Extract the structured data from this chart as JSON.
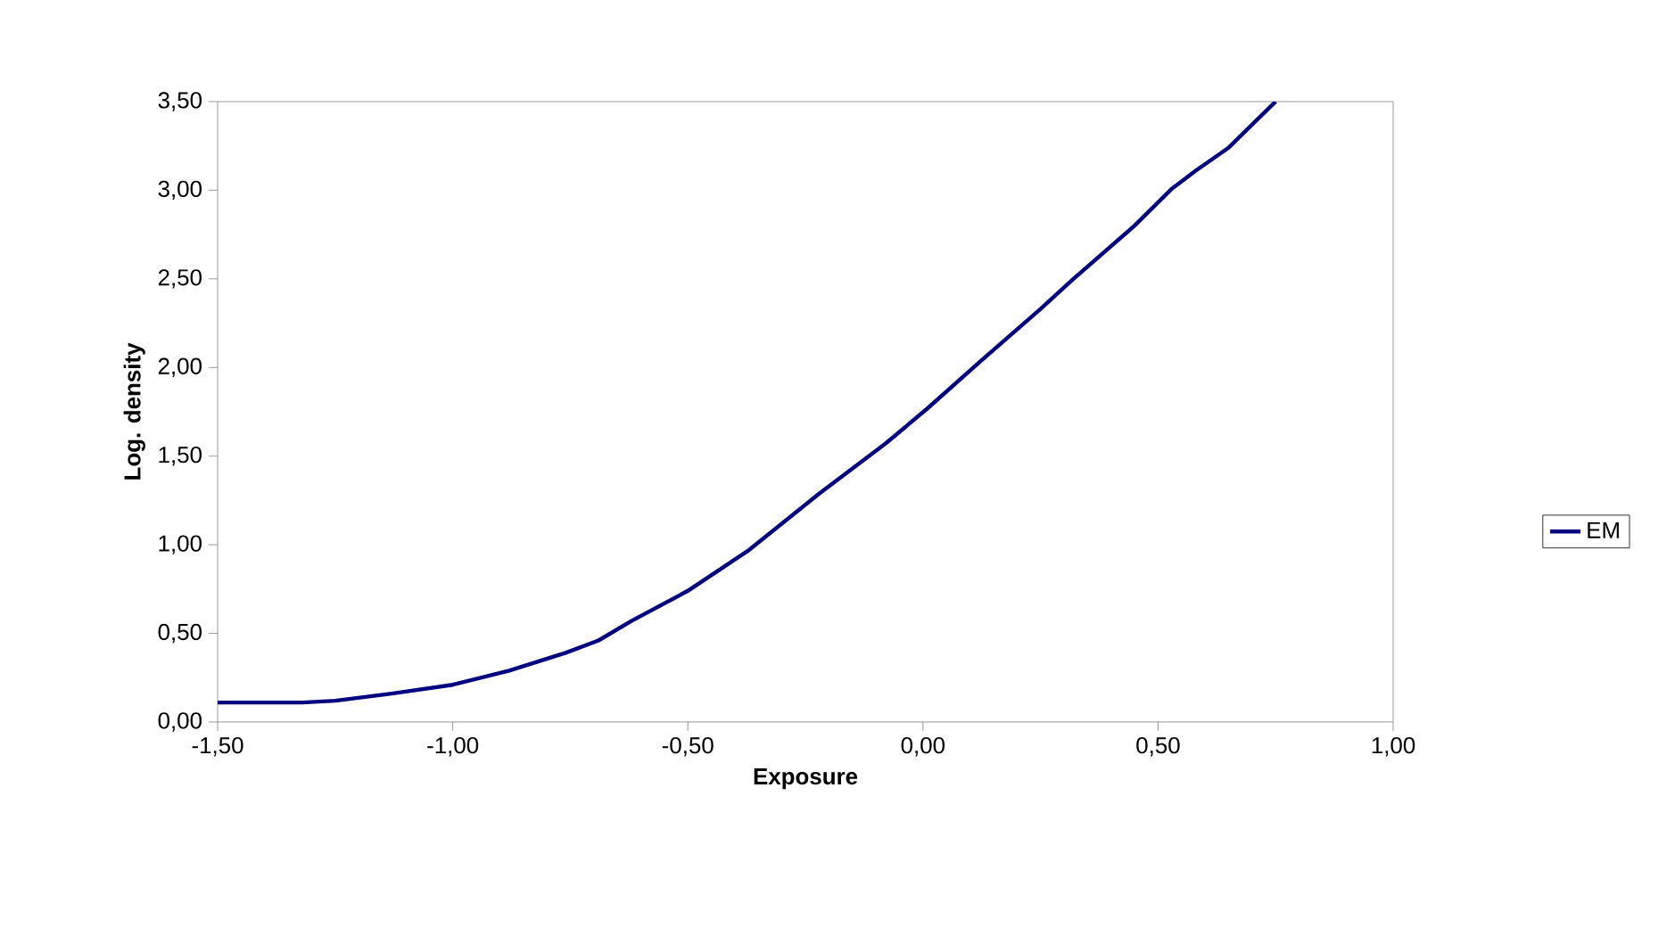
{
  "chart_data": {
    "type": "line",
    "xlabel": "Exposure",
    "ylabel": "Log. density",
    "xlim": [
      -1.5,
      1.0
    ],
    "ylim": [
      0,
      3.5
    ],
    "xticks": [
      {
        "value": -1.5,
        "label": "-1,50"
      },
      {
        "value": -1.0,
        "label": "-1,00"
      },
      {
        "value": -0.5,
        "label": "-0,50"
      },
      {
        "value": 0,
        "label": "0,00"
      },
      {
        "value": 0.5,
        "label": "0,50"
      },
      {
        "value": 1.0,
        "label": "1,00"
      }
    ],
    "yticks": [
      {
        "value": 0,
        "label": "0,00"
      },
      {
        "value": 0.5,
        "label": "0,50"
      },
      {
        "value": 1.0,
        "label": "1,00"
      },
      {
        "value": 1.5,
        "label": "1,50"
      },
      {
        "value": 2.0,
        "label": "2,00"
      },
      {
        "value": 2.5,
        "label": "2,50"
      },
      {
        "value": 3.0,
        "label": "3,00"
      },
      {
        "value": 3.5,
        "label": "3,50"
      }
    ],
    "grid": false,
    "legend": "right",
    "marker": "none",
    "line_style": "solid",
    "series": [
      {
        "name": "EM",
        "color": "#000080",
        "x": [
          -1.5,
          -1.32,
          -1.25,
          -1.13,
          -1.0,
          -0.88,
          -0.76,
          -0.69,
          -0.62,
          -0.5,
          -0.37,
          -0.22,
          -0.08,
          0.01,
          0.12,
          0.25,
          0.32,
          0.45,
          0.53,
          0.58,
          0.65,
          0.75
        ],
        "values": [
          0.11,
          0.11,
          0.12,
          0.16,
          0.21,
          0.29,
          0.39,
          0.46,
          0.57,
          0.74,
          0.97,
          1.29,
          1.57,
          1.77,
          2.03,
          2.33,
          2.5,
          2.8,
          3.01,
          3.11,
          3.24,
          3.5
        ]
      }
    ]
  }
}
